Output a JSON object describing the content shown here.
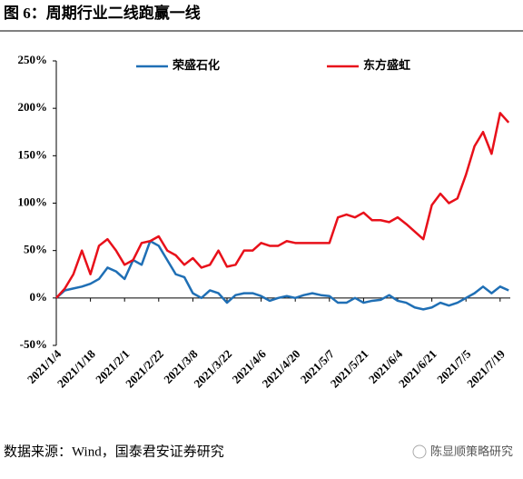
{
  "title": "图 6：周期行业二线跑赢一线",
  "source": "数据来源：Wind，国泰君安证券研究",
  "watermark": "陈显顺策略研究",
  "chart_data": {
    "type": "line",
    "categories": [
      "2021/1/4",
      null,
      null,
      null,
      "2021/1/18",
      null,
      null,
      null,
      "2021/2/1",
      null,
      null,
      null,
      "2021/2/22",
      null,
      null,
      null,
      "2021/3/8",
      null,
      null,
      null,
      "2021/3/22",
      null,
      null,
      null,
      "2021/4/6",
      null,
      null,
      null,
      "2021/4/20",
      null,
      null,
      null,
      "2021/5/7",
      null,
      null,
      null,
      "2021/5/21",
      null,
      null,
      null,
      "2021/6/4",
      null,
      null,
      null,
      "2021/6/21",
      null,
      null,
      null,
      "2021/7/5",
      null,
      null,
      null,
      "2021/7/19",
      null
    ],
    "series": [
      {
        "name": "荣盛石化",
        "color": "#1f6fb5",
        "values": [
          0,
          8,
          10,
          12,
          15,
          20,
          32,
          28,
          20,
          40,
          35,
          60,
          55,
          40,
          25,
          22,
          5,
          0,
          8,
          5,
          -5,
          3,
          5,
          5,
          2,
          -3,
          0,
          2,
          0,
          3,
          5,
          3,
          2,
          -5,
          -5,
          0,
          -5,
          -3,
          -2,
          3,
          -3,
          -5,
          -10,
          -12,
          -10,
          -5,
          -8,
          -5,
          0,
          5,
          12,
          5,
          12,
          8
        ]
      },
      {
        "name": "东方盛虹",
        "color": "#e8101a",
        "values": [
          0,
          10,
          25,
          50,
          25,
          55,
          62,
          50,
          35,
          40,
          58,
          60,
          65,
          50,
          45,
          35,
          42,
          32,
          35,
          50,
          33,
          35,
          50,
          50,
          58,
          55,
          55,
          60,
          58,
          58,
          58,
          58,
          58,
          85,
          88,
          85,
          90,
          82,
          82,
          80,
          85,
          78,
          70,
          62,
          98,
          110,
          100,
          105,
          130,
          160,
          175,
          152,
          195,
          185
        ]
      }
    ],
    "ylim": [
      -50,
      250
    ],
    "yticks": [
      {
        "value": 250,
        "label": "250%"
      },
      {
        "value": 200,
        "label": "200%"
      },
      {
        "value": 150,
        "label": "150%"
      },
      {
        "value": 100,
        "label": "100%"
      },
      {
        "value": 50,
        "label": "50%"
      },
      {
        "value": 0,
        "label": "0%"
      },
      {
        "value": -50,
        "label": "-50%"
      }
    ]
  }
}
